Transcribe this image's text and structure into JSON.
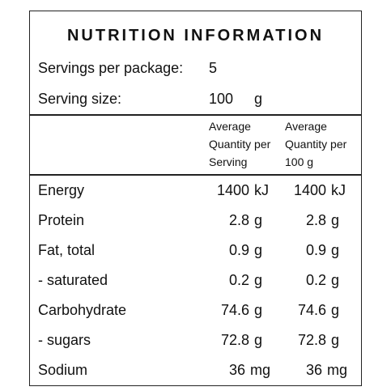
{
  "title": "NUTRITION INFORMATION",
  "servings": {
    "label": "Servings per package:",
    "value": "5"
  },
  "serving_size": {
    "label": "Serving size:",
    "value": "100",
    "unit": "g"
  },
  "columns": [
    {
      "lines": [
        "Average",
        "Quantity per",
        "Serving"
      ]
    },
    {
      "lines": [
        "Average",
        "Quantity per",
        "100 g"
      ]
    }
  ],
  "rows": [
    {
      "name": "Energy",
      "serving": "1400",
      "serving_unit": "kJ",
      "per100": "1400",
      "per100_unit": "kJ"
    },
    {
      "name": "Protein",
      "serving": "2.8",
      "serving_unit": "g",
      "per100": "2.8",
      "per100_unit": "g"
    },
    {
      "name": "Fat, total",
      "serving": "0.9",
      "serving_unit": "g",
      "per100": "0.9",
      "per100_unit": "g"
    },
    {
      "name": "- saturated",
      "serving": "0.2",
      "serving_unit": "g",
      "per100": "0.2",
      "per100_unit": "g"
    },
    {
      "name": "Carbohydrate",
      "serving": "74.6",
      "serving_unit": "g",
      "per100": "74.6",
      "per100_unit": "g"
    },
    {
      "name": "- sugars",
      "serving": "72.8",
      "serving_unit": "g",
      "per100": "72.8",
      "per100_unit": "g"
    },
    {
      "name": "Sodium",
      "serving": "36",
      "serving_unit": "mg",
      "per100": "36",
      "per100_unit": "mg"
    }
  ]
}
